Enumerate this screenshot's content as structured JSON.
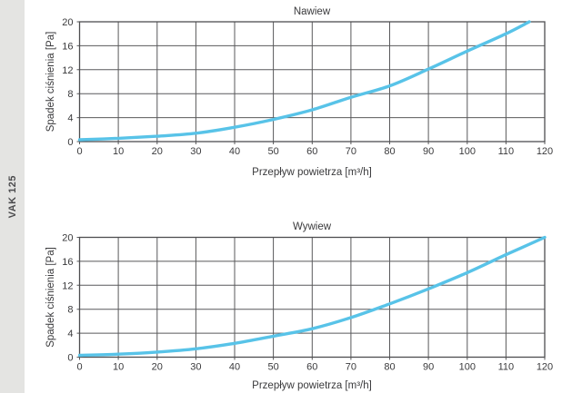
{
  "product_strip": {
    "label": "VAK 125"
  },
  "colors": {
    "curve": "#58c3e8",
    "grid": "#59595b",
    "plot_border": "#4e4e50",
    "text": "#3a3a3c",
    "strip_bg": "#e4e4e2",
    "background": "#ffffff"
  },
  "chart_data": [
    {
      "type": "line",
      "title": "Nawiew",
      "xlabel": "Przepływ powietrza [m³/h]",
      "ylabel": "Spadek ciśnienia [Pa]",
      "xlim": [
        0,
        120
      ],
      "ylim": [
        0,
        20
      ],
      "xticks": [
        0,
        10,
        20,
        30,
        40,
        50,
        60,
        70,
        80,
        90,
        100,
        110,
        120
      ],
      "yticks": [
        0,
        4,
        8,
        12,
        16,
        20
      ],
      "grid": true,
      "legend": "none",
      "series": [
        {
          "name": "Nawiew",
          "points": [
            [
              0,
              0.3
            ],
            [
              10,
              0.55
            ],
            [
              20,
              0.9
            ],
            [
              30,
              1.4
            ],
            [
              40,
              2.4
            ],
            [
              50,
              3.7
            ],
            [
              60,
              5.3
            ],
            [
              70,
              7.4
            ],
            [
              80,
              9.3
            ],
            [
              90,
              12.1
            ],
            [
              100,
              15.1
            ],
            [
              110,
              18.0
            ],
            [
              116,
              20.0
            ]
          ]
        }
      ]
    },
    {
      "type": "line",
      "title": "Wywiew",
      "xlabel": "Przepływ powietrza [m³/h]",
      "ylabel": "Spadek ciśnienia [Pa]",
      "xlim": [
        0,
        120
      ],
      "ylim": [
        0,
        20
      ],
      "xticks": [
        0,
        10,
        20,
        30,
        40,
        50,
        60,
        70,
        80,
        90,
        100,
        110,
        120
      ],
      "yticks": [
        0,
        4,
        8,
        12,
        16,
        20
      ],
      "grid": true,
      "legend": "none",
      "series": [
        {
          "name": "Wywiew",
          "points": [
            [
              0,
              0.3
            ],
            [
              10,
              0.5
            ],
            [
              20,
              0.85
            ],
            [
              30,
              1.4
            ],
            [
              40,
              2.3
            ],
            [
              50,
              3.5
            ],
            [
              60,
              4.75
            ],
            [
              70,
              6.6
            ],
            [
              80,
              8.9
            ],
            [
              90,
              11.4
            ],
            [
              100,
              14.1
            ],
            [
              110,
              17.1
            ],
            [
              120,
              20.0
            ]
          ]
        }
      ]
    }
  ]
}
